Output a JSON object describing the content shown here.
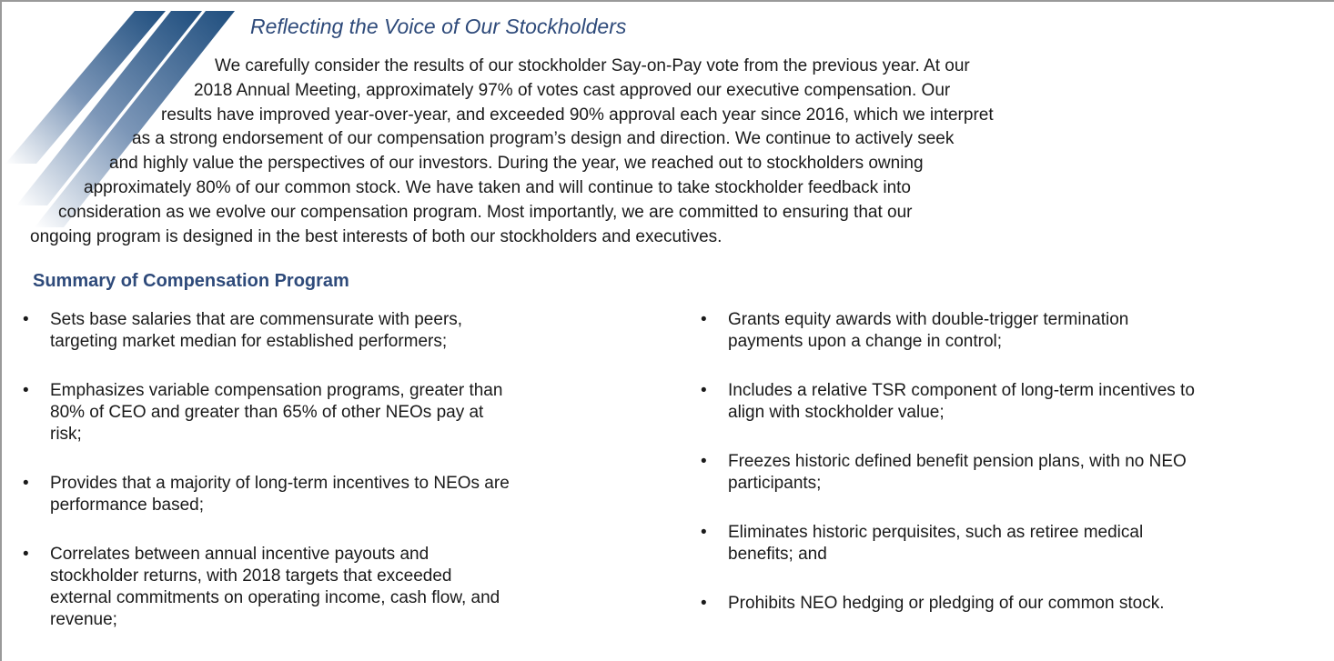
{
  "title": "Reflecting the Voice of Our Stockholders",
  "paragraph": [
    "We carefully consider the results of our stockholder Say-on-Pay vote from the previous year. At our",
    "2018 Annual Meeting, approximately 97% of votes cast approved our executive compensation. Our",
    "results have improved year-over-year, and exceeded 90% approval each year since 2016, which we interpret",
    "as a strong endorsement of our compensation program’s design and direction. We continue to actively seek",
    "and highly value the perspectives of our investors. During the year, we reached out to stockholders owning",
    "approximately 80% of our common stock. We have taken and will continue to take stockholder feedback into",
    "consideration as we evolve our compensation program. Most importantly, we are committed to ensuring that our",
    "ongoing program is designed in the best interests of both our stockholders and executives."
  ],
  "summary": {
    "heading": "Summary of Compensation Program",
    "bullet": "•",
    "left": [
      [
        "Sets base salaries that are commensurate with peers,",
        "targeting market median for established performers;"
      ],
      [
        "Emphasizes variable compensation programs, greater than",
        "80% of CEO and greater than 65% of other NEOs pay at",
        "risk;"
      ],
      [
        "Provides that a majority of long-term incentives to NEOs are",
        "performance based;"
      ],
      [
        "Correlates between annual incentive payouts and",
        "stockholder returns, with 2018 targets that exceeded",
        "external commitments on operating income, cash flow, and",
        "revenue;"
      ]
    ],
    "right": [
      [
        "Grants equity awards with double-trigger termination",
        "payments upon a change in control;"
      ],
      [
        "Includes a relative TSR component of long-term incentives to",
        "align with stockholder value;"
      ],
      [
        "Freezes historic defined benefit pension plans, with no NEO",
        "participants;"
      ],
      [
        "Eliminates historic perquisites, such as retiree medical",
        "benefits; and"
      ],
      [
        "Prohibits NEO hedging or pledging of our common stock."
      ]
    ]
  }
}
